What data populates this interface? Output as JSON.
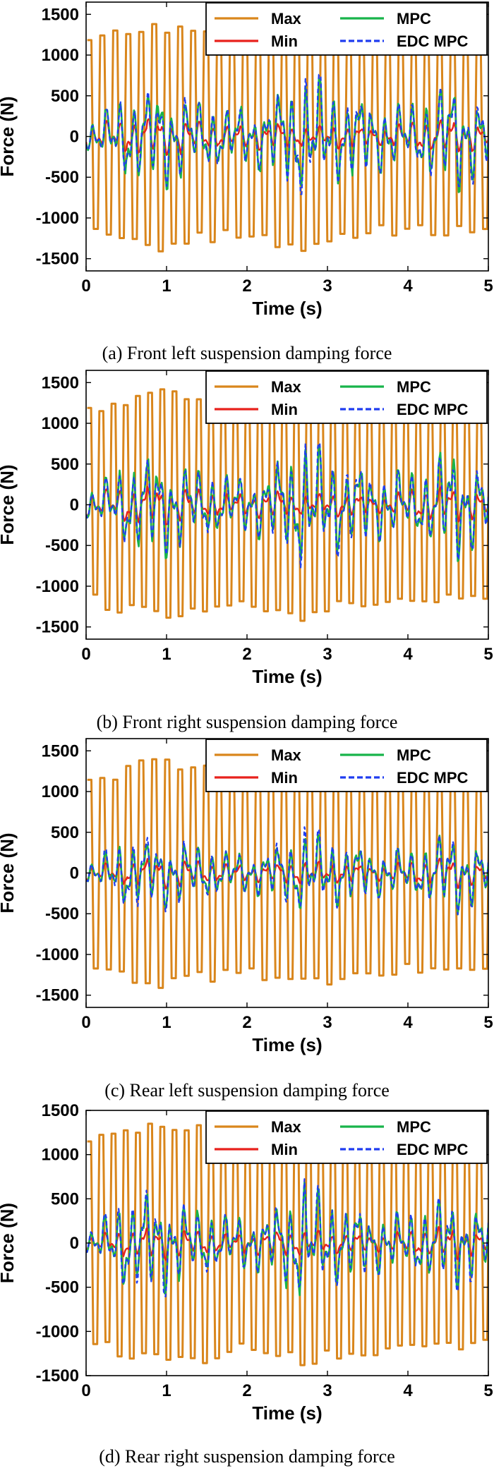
{
  "figure": {
    "xlabel": "Time (s)",
    "ylabel": "Force (N)",
    "legend": {
      "placement": "top-right",
      "entries": [
        {
          "label": "Max",
          "color": "#d9861c",
          "style": "solid"
        },
        {
          "label": "Min",
          "color": "#e8211c",
          "style": "solid"
        },
        {
          "label": "MPC",
          "color": "#18b44a",
          "style": "solid"
        },
        {
          "label": "EDC MPC",
          "color": "#1f3cf0",
          "style": "dashed"
        }
      ]
    }
  },
  "chart_data": [
    {
      "type": "line",
      "caption": "(a)  Front left suspension damping force",
      "xlabel": "Time (s)",
      "ylabel": "Force (N)",
      "xlim": [
        0,
        5
      ],
      "ylim": [
        -1650,
        1650
      ],
      "xticks": [
        0,
        1,
        2,
        3,
        4,
        5
      ],
      "yticks": [
        -1500,
        -1000,
        -500,
        0,
        500,
        1000,
        1500
      ],
      "legend": "top-right",
      "series": [
        {
          "name": "Max",
          "color": "#d9861c",
          "amplitude_peaks": [
            1200,
            1350,
            1420,
            1300,
            1250,
            1330,
            1450,
            1250,
            1200,
            1180,
            1200,
            1220
          ]
        },
        {
          "name": "Min",
          "color": "#e8211c",
          "amplitude_peaks": [
            150,
            220,
            250,
            200,
            120,
            180,
            120,
            150,
            100,
            200,
            220,
            150
          ]
        },
        {
          "name": "MPC",
          "color": "#18b44a",
          "amplitude_peaks": [
            150,
            500,
            700,
            450,
            350,
            450,
            800,
            550,
            450,
            400,
            750,
            400
          ]
        },
        {
          "name": "EDC MPC",
          "color": "#1f3cf0",
          "amplitude_peaks": [
            150,
            480,
            650,
            450,
            350,
            420,
            850,
            600,
            450,
            380,
            700,
            500
          ]
        }
      ]
    },
    {
      "type": "line",
      "caption": "(b) Front right suspension damping force",
      "xlabel": "Time (s)",
      "ylabel": "Force (N)",
      "xlim": [
        0,
        5
      ],
      "ylim": [
        -1650,
        1650
      ],
      "xticks": [
        0,
        1,
        2,
        3,
        4,
        5
      ],
      "yticks": [
        -1500,
        -1000,
        -500,
        0,
        500,
        1000,
        1500
      ],
      "legend": "top-right",
      "series": [
        {
          "name": "Max",
          "color": "#d9861c",
          "amplitude_peaks": [
            1200,
            1350,
            1420,
            1300,
            1250,
            1330,
            1450,
            1250,
            1200,
            1180,
            1200,
            1220
          ]
        },
        {
          "name": "Min",
          "color": "#e8211c",
          "amplitude_peaks": [
            150,
            220,
            250,
            200,
            120,
            180,
            120,
            150,
            100,
            200,
            220,
            150
          ]
        },
        {
          "name": "MPC",
          "color": "#18b44a",
          "amplitude_peaks": [
            150,
            500,
            700,
            450,
            350,
            450,
            800,
            550,
            450,
            400,
            750,
            400
          ]
        },
        {
          "name": "EDC MPC",
          "color": "#1f3cf0",
          "amplitude_peaks": [
            150,
            480,
            650,
            450,
            350,
            420,
            850,
            600,
            450,
            380,
            700,
            500
          ]
        }
      ]
    },
    {
      "type": "line",
      "caption": "(c) Rear left suspension damping force",
      "xlabel": "Time (s)",
      "ylabel": "Force (N)",
      "xlim": [
        0,
        5
      ],
      "ylim": [
        -1650,
        1650
      ],
      "xticks": [
        0,
        1,
        2,
        3,
        4,
        5
      ],
      "yticks": [
        -1500,
        -1000,
        -500,
        0,
        500,
        1000,
        1500
      ],
      "legend": "top-right",
      "series": [
        {
          "name": "Max",
          "color": "#d9861c",
          "amplitude_peaks": [
            1150,
            1300,
            1450,
            1350,
            1250,
            1300,
            1400,
            1300,
            1250,
            1200,
            1200,
            1200
          ]
        },
        {
          "name": "Min",
          "color": "#e8211c",
          "amplitude_peaks": [
            80,
            150,
            200,
            150,
            100,
            120,
            150,
            120,
            100,
            150,
            200,
            100
          ]
        },
        {
          "name": "MPC",
          "color": "#18b44a",
          "amplitude_peaks": [
            100,
            400,
            450,
            350,
            250,
            300,
            500,
            400,
            300,
            300,
            550,
            300
          ]
        },
        {
          "name": "EDC MPC",
          "color": "#1f3cf0",
          "amplitude_peaks": [
            100,
            450,
            500,
            350,
            250,
            300,
            600,
            400,
            300,
            300,
            550,
            300
          ]
        }
      ]
    },
    {
      "type": "line",
      "caption": "(d) Rear right suspension damping force",
      "xlabel": "Time (s)",
      "ylabel": "Force (N)",
      "xlim": [
        0,
        5
      ],
      "ylim": [
        -1500,
        1500
      ],
      "xticks": [
        0,
        1,
        2,
        3,
        4,
        5
      ],
      "yticks": [
        -1500,
        -1000,
        -500,
        0,
        500,
        1000,
        1500
      ],
      "legend": "top-right",
      "series": [
        {
          "name": "Max",
          "color": "#d9861c",
          "amplitude_peaks": [
            1150,
            1300,
            1400,
            1350,
            1250,
            1300,
            1400,
            1300,
            1250,
            1200,
            1200,
            1200
          ]
        },
        {
          "name": "Min",
          "color": "#e8211c",
          "amplitude_peaks": [
            80,
            150,
            200,
            150,
            100,
            150,
            150,
            120,
            100,
            150,
            200,
            100
          ]
        },
        {
          "name": "MPC",
          "color": "#18b44a",
          "amplitude_peaks": [
            100,
            500,
            600,
            400,
            300,
            350,
            700,
            450,
            350,
            350,
            550,
            350
          ]
        },
        {
          "name": "EDC MPC",
          "color": "#1f3cf0",
          "amplitude_peaks": [
            100,
            550,
            650,
            400,
            300,
            350,
            750,
            450,
            350,
            350,
            600,
            350
          ]
        }
      ]
    }
  ]
}
